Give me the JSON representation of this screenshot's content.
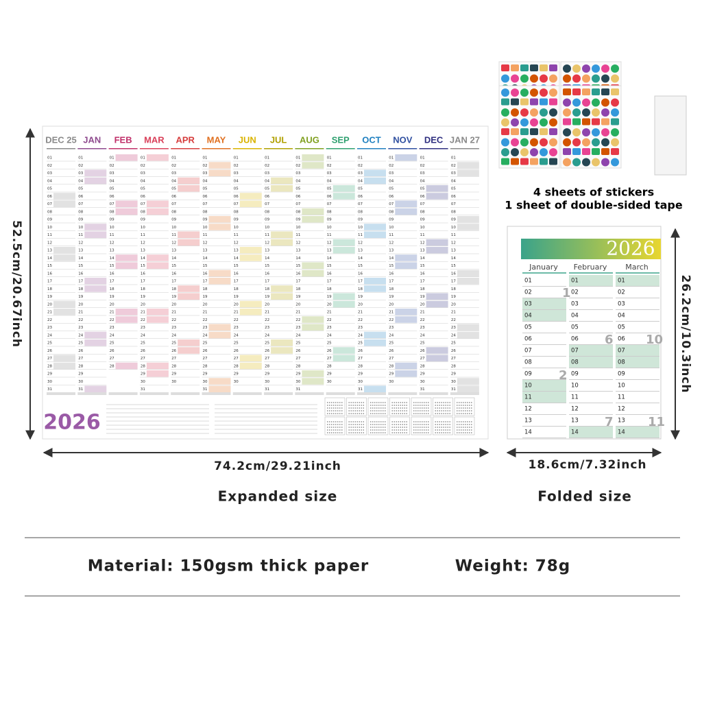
{
  "poster": {
    "months": [
      "DEC 25",
      "JAN",
      "FEB",
      "MAR",
      "APR",
      "MAY",
      "JUN",
      "JUL",
      "AUG",
      "SEP",
      "OCT",
      "NOV",
      "DEC",
      "JAN 27"
    ],
    "month_colors": [
      "#8a8a8a",
      "#8e4a8e",
      "#c0306a",
      "#d9405a",
      "#d63c3c",
      "#e07020",
      "#d9b300",
      "#b0a000",
      "#80a020",
      "#30a070",
      "#2080c0",
      "#3050a0",
      "#303080",
      "#8a8a8a"
    ],
    "year": "2026",
    "day_labels": [
      "01",
      "02",
      "03",
      "04",
      "05",
      "06",
      "07",
      "08",
      "09",
      "10",
      "11",
      "12",
      "13",
      "14",
      "15",
      "16",
      "17",
      "18",
      "19",
      "20",
      "21",
      "22",
      "23",
      "24",
      "25",
      "26",
      "27",
      "28",
      "29",
      "30",
      "31"
    ]
  },
  "stickers": {
    "line1": "4 sheets of stickers",
    "line2": "1 sheet of double-sided tape"
  },
  "folded": {
    "year": "2026",
    "months": [
      "January",
      "February",
      "March"
    ],
    "week_numbers": [
      "1",
      "2",
      "6",
      "7",
      "10",
      "11"
    ]
  },
  "dimensions": {
    "expanded_height": "52.5cm/20.67inch",
    "expanded_width": "74.2cm/29.21inch",
    "expanded_caption": "Expanded size",
    "folded_height": "26.2cm/10.3inch",
    "folded_width": "18.6cm/7.32inch",
    "folded_caption": "Folded size"
  },
  "specs": {
    "material": "Material: 150gsm thick paper",
    "weight": "Weight: 78g"
  }
}
